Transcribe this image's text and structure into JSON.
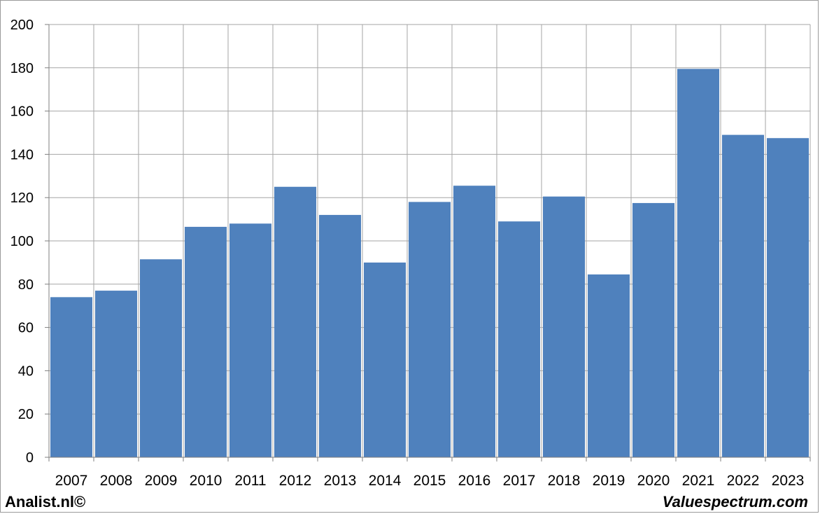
{
  "chart_data": {
    "type": "bar",
    "categories": [
      "2007",
      "2008",
      "2009",
      "2010",
      "2011",
      "2012",
      "2013",
      "2014",
      "2015",
      "2016",
      "2017",
      "2018",
      "2019",
      "2020",
      "2021",
      "2022",
      "2023"
    ],
    "values": [
      74,
      77,
      91.5,
      106.5,
      108,
      125,
      112,
      90,
      118,
      125.5,
      109,
      120.5,
      84.5,
      117.5,
      179.5,
      149,
      147.5
    ],
    "title": "",
    "xlabel": "",
    "ylabel": "",
    "ylim": [
      0,
      200
    ],
    "yticks": [
      0,
      20,
      40,
      60,
      80,
      100,
      120,
      140,
      160,
      180,
      200
    ],
    "grid": true,
    "bar_color": "#4f81bd",
    "grid_color": "#a6a6a6"
  },
  "footer": {
    "left": "Analist.nl©",
    "right": "Valuespectrum.com"
  }
}
